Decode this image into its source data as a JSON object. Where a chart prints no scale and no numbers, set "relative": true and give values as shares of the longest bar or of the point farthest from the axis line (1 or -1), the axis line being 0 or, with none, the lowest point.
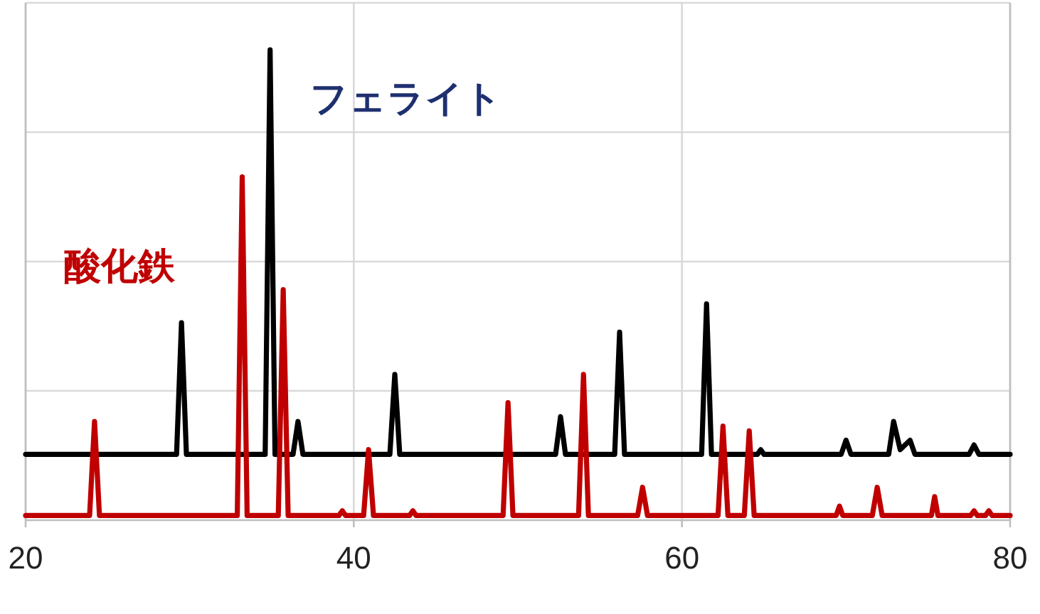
{
  "chart_data": {
    "type": "line",
    "relative": true,
    "xlim": [
      20,
      80
    ],
    "xticks": [
      20,
      40,
      60,
      80
    ],
    "grid": true,
    "series": [
      {
        "name": "フェライト",
        "color": "#000000",
        "x": [
          20,
          29.2,
          29.5,
          29.8,
          34.6,
          34.9,
          35.2,
          36.3,
          36.6,
          36.9,
          42.2,
          42.5,
          42.8,
          52.3,
          52.6,
          52.9,
          55.9,
          56.2,
          56.5,
          61.2,
          61.5,
          61.8,
          64.6,
          64.8,
          65.0,
          69.7,
          70.0,
          70.3,
          72.6,
          72.9,
          73.3,
          73.9,
          74.2,
          77.5,
          77.8,
          78.1,
          80
        ],
        "values": [
          0.14,
          0.14,
          0.42,
          0.14,
          0.14,
          1.0,
          0.14,
          0.14,
          0.21,
          0.14,
          0.14,
          0.31,
          0.14,
          0.14,
          0.22,
          0.14,
          0.14,
          0.4,
          0.14,
          0.14,
          0.46,
          0.14,
          0.14,
          0.15,
          0.14,
          0.14,
          0.17,
          0.14,
          0.14,
          0.21,
          0.15,
          0.17,
          0.14,
          0.14,
          0.16,
          0.14,
          0.14
        ]
      },
      {
        "name": "酸化鉄",
        "color": "#c00000",
        "x": [
          20,
          23.9,
          24.2,
          24.5,
          32.9,
          33.2,
          33.5,
          35.4,
          35.7,
          36.0,
          39.1,
          39.3,
          39.5,
          40.6,
          40.9,
          41.2,
          43.4,
          43.6,
          43.8,
          49.1,
          49.4,
          49.7,
          53.7,
          54.0,
          54.3,
          57.3,
          57.6,
          57.9,
          62.2,
          62.5,
          62.8,
          63.8,
          64.1,
          64.4,
          69.4,
          69.6,
          69.8,
          71.6,
          71.9,
          72.2,
          75.2,
          75.4,
          75.6,
          77.6,
          77.8,
          78.0,
          78.5,
          78.7,
          78.9,
          80
        ],
        "values": [
          0.01,
          0.01,
          0.21,
          0.01,
          0.01,
          0.73,
          0.01,
          0.01,
          0.49,
          0.01,
          0.01,
          0.02,
          0.01,
          0.01,
          0.15,
          0.01,
          0.01,
          0.02,
          0.01,
          0.01,
          0.25,
          0.01,
          0.01,
          0.31,
          0.01,
          0.01,
          0.07,
          0.01,
          0.01,
          0.2,
          0.01,
          0.01,
          0.19,
          0.01,
          0.01,
          0.03,
          0.01,
          0.01,
          0.07,
          0.01,
          0.01,
          0.05,
          0.01,
          0.01,
          0.02,
          0.01,
          0.01,
          0.02,
          0.01,
          0.01
        ]
      }
    ]
  }
}
